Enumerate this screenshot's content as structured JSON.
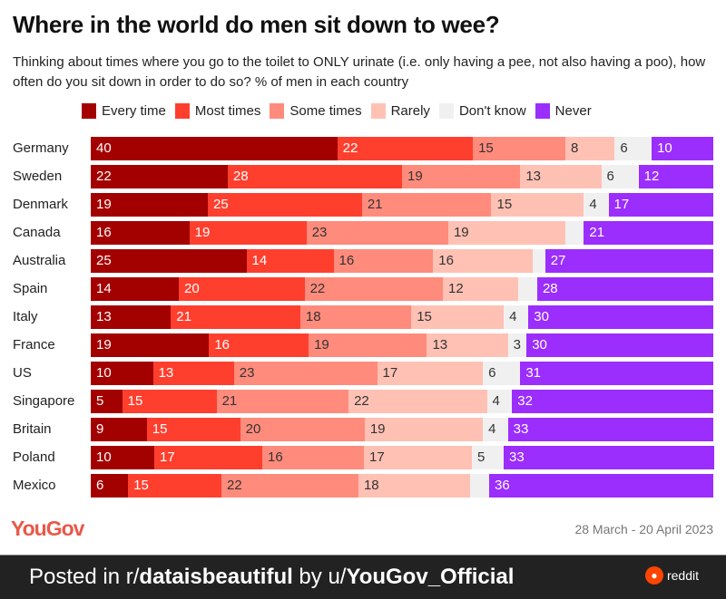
{
  "chart_data": {
    "type": "bar",
    "orientation": "horizontal-stacked-100",
    "title": "Where in the world do men sit down to wee?",
    "subtitle": "Thinking about times where you go to the toilet to ONLY urinate (i.e. only having a pee, not also having a poo), how often do you sit down in order to do so? % of men in each country",
    "legend_placement": "top",
    "series": [
      {
        "name": "Every time",
        "color": "#a30000",
        "text_color": "#ffffff"
      },
      {
        "name": "Most times",
        "color": "#ff3f2e",
        "text_color": "#ffffff"
      },
      {
        "name": "Some times",
        "color": "#ff8b7c",
        "text_color": "#333333"
      },
      {
        "name": "Rarely",
        "color": "#ffc1b4",
        "text_color": "#333333"
      },
      {
        "name": "Don't know",
        "color": "#f0f0f0",
        "text_color": "#333333"
      },
      {
        "name": "Never",
        "color": "#9b2dfd",
        "text_color": "#ffffff"
      }
    ],
    "categories": [
      "Germany",
      "Sweden",
      "Denmark",
      "Canada",
      "Australia",
      "Spain",
      "Italy",
      "France",
      "US",
      "Singapore",
      "Britain",
      "Poland",
      "Mexico"
    ],
    "values": [
      [
        40,
        22,
        15,
        8,
        6,
        10
      ],
      [
        22,
        28,
        19,
        13,
        6,
        12
      ],
      [
        19,
        25,
        21,
        15,
        4,
        17
      ],
      [
        16,
        19,
        23,
        19,
        3,
        21
      ],
      [
        25,
        14,
        16,
        16,
        2,
        27
      ],
      [
        14,
        20,
        22,
        12,
        3,
        28
      ],
      [
        13,
        21,
        18,
        15,
        4,
        30
      ],
      [
        19,
        16,
        19,
        13,
        3,
        30
      ],
      [
        10,
        13,
        23,
        17,
        6,
        31
      ],
      [
        5,
        15,
        21,
        22,
        4,
        32
      ],
      [
        9,
        15,
        20,
        19,
        4,
        33
      ],
      [
        10,
        17,
        16,
        17,
        5,
        33
      ],
      [
        6,
        15,
        22,
        18,
        3,
        36
      ]
    ],
    "unlabeled_segments": [
      [
        3,
        4
      ],
      [
        4,
        4
      ],
      [
        5,
        4
      ],
      [
        12,
        4
      ]
    ]
  },
  "footer": {
    "brand": "YouGov",
    "date": "28 March - 20 April 2023"
  },
  "banner": {
    "prefix": "Posted in r/",
    "subreddit": "dataisbeautiful",
    "by": " by u/",
    "user": "YouGov_Official",
    "reddit": "reddit"
  }
}
